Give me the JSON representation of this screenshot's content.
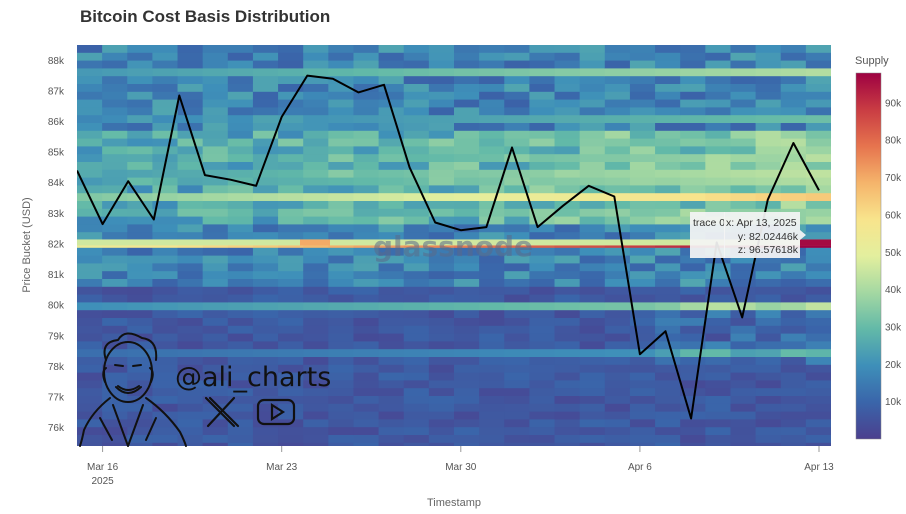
{
  "chart_data": {
    "type": "heatmap",
    "title": "Bitcoin Cost Basis Distribution",
    "xlabel": "Timestamp",
    "ylabel": "Price Bucket (USD)",
    "colorbar_title": "Supply",
    "x_ticks": [
      {
        "date": "2025-03-16",
        "label": "Mar 16",
        "sublabel": "2025"
      },
      {
        "date": "2025-03-23",
        "label": "Mar 23"
      },
      {
        "date": "2025-03-30",
        "label": "Mar 30"
      },
      {
        "date": "2025-04-06",
        "label": "Apr 6"
      },
      {
        "date": "2025-04-13",
        "label": "Apr 13"
      }
    ],
    "y_ticks": [
      "76k",
      "77k",
      "78k",
      "79k",
      "80k",
      "81k",
      "82k",
      "83k",
      "84k",
      "85k",
      "86k",
      "87k",
      "88k"
    ],
    "y_tick_values": [
      76000,
      77000,
      78000,
      79000,
      80000,
      81000,
      82000,
      83000,
      84000,
      85000,
      86000,
      87000,
      88000
    ],
    "ylim": [
      75400,
      88500
    ],
    "xlim": [
      "2025-03-15",
      "2025-04-13"
    ],
    "colorbar_ticks": [
      "10k",
      "20k",
      "30k",
      "40k",
      "50k",
      "60k",
      "70k",
      "80k",
      "90k"
    ],
    "colorbar_tick_values": [
      10000,
      20000,
      30000,
      40000,
      50000,
      60000,
      70000,
      80000,
      90000
    ],
    "colorbar_range": [
      0,
      98000
    ],
    "colorscale": [
      "#4b3f8e",
      "#3a65aa",
      "#3e8fb9",
      "#62b9a8",
      "#a4d8a2",
      "#e3ef9e",
      "#f8e48c",
      "#f5b46b",
      "#e6744e",
      "#c93c43",
      "#9e0142"
    ],
    "price_line": {
      "dates": [
        "2025-03-15",
        "2025-03-16",
        "2025-03-17",
        "2025-03-18",
        "2025-03-19",
        "2025-03-20",
        "2025-03-21",
        "2025-03-22",
        "2025-03-23",
        "2025-03-24",
        "2025-03-25",
        "2025-03-26",
        "2025-03-27",
        "2025-03-28",
        "2025-03-29",
        "2025-03-30",
        "2025-03-31",
        "2025-04-01",
        "2025-04-02",
        "2025-04-03",
        "2025-04-04",
        "2025-04-05",
        "2025-04-06",
        "2025-04-07",
        "2025-04-08",
        "2025-04-09",
        "2025-04-10",
        "2025-04-11",
        "2025-04-12",
        "2025-04-13"
      ],
      "values": [
        84400,
        82650,
        84050,
        82800,
        86850,
        84250,
        84100,
        83900,
        86150,
        87500,
        87400,
        86950,
        87200,
        84500,
        82700,
        82450,
        82550,
        85150,
        82550,
        83250,
        83900,
        83550,
        78400,
        79150,
        76300,
        82050,
        79600,
        83450,
        85300,
        83750
      ]
    },
    "supply_bands": [
      {
        "price": 82000,
        "supply": 55000
      },
      {
        "price": 82050,
        "supply": 96576
      },
      {
        "price": 83500,
        "supply": 62000
      },
      {
        "price": 84000,
        "supply": 40000
      },
      {
        "price": 84250,
        "supply": 42000
      },
      {
        "price": 84700,
        "supply": 38000
      },
      {
        "price": 85200,
        "supply": 34000
      },
      {
        "price": 83100,
        "supply": 36000
      },
      {
        "price": 87600,
        "supply": 40000
      },
      {
        "price": 86000,
        "supply": 30000
      },
      {
        "price": 80000,
        "supply": 36000
      },
      {
        "price": 78400,
        "supply": 22000
      }
    ],
    "hover": {
      "trace": "trace 0",
      "x": "x: Apr 13, 2025",
      "y": "y: 82.02446k",
      "z": "z: 96.57618k"
    },
    "watermark": "glassnode",
    "handle": "@ali_charts"
  }
}
